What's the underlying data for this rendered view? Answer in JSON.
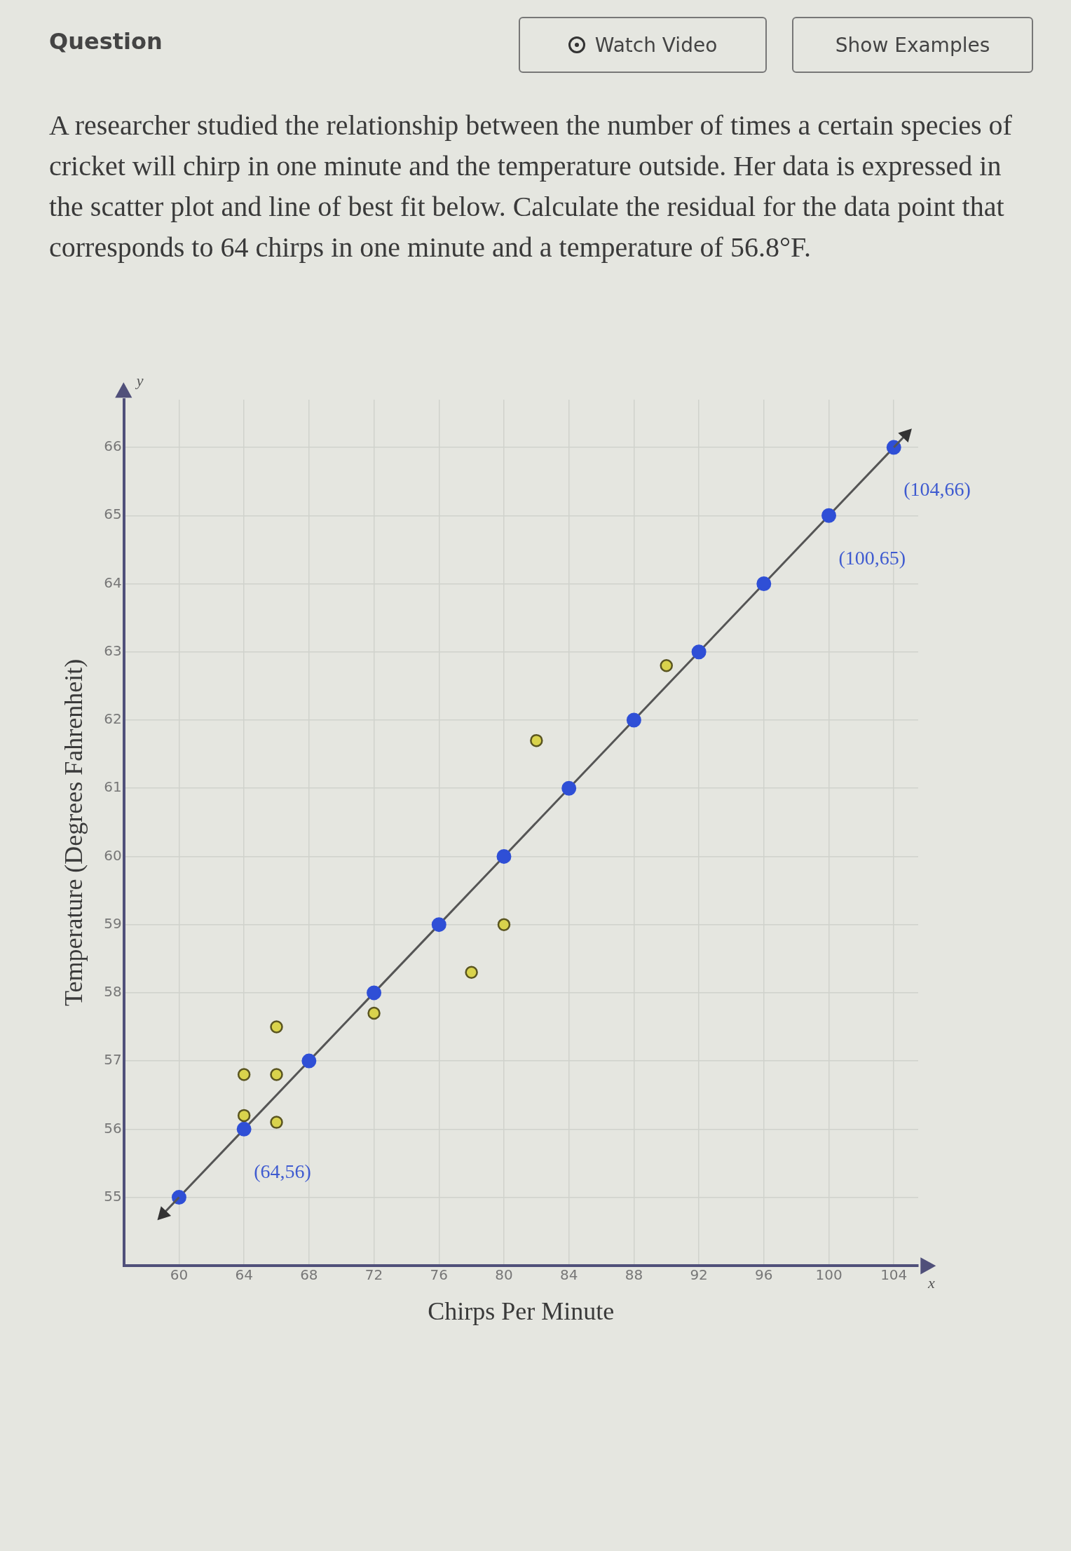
{
  "chart_data": {
    "type": "scatter",
    "xlabel": "Chirps Per Minute",
    "ylabel": "Temperature (Degrees Fahrenheit)",
    "xlim": [
      56.6,
      105.5
    ],
    "ylim": [
      54,
      66.7
    ],
    "xticks": [
      60,
      64,
      68,
      72,
      76,
      80,
      84,
      88,
      92,
      96,
      100,
      104
    ],
    "yticks": [
      55,
      56,
      57,
      58,
      59,
      60,
      61,
      62,
      63,
      64,
      65,
      66
    ],
    "grid": true,
    "legend": false,
    "marker": "circle",
    "series": [
      {
        "type": "scatter",
        "color": "#d9d34c",
        "x": [
          64,
          64,
          66,
          66,
          66,
          72,
          78,
          80,
          82,
          90
        ],
        "values": [
          56.2,
          56.8,
          56.1,
          56.8,
          57.5,
          57.7,
          58.3,
          59,
          61.7,
          62.8
        ]
      },
      {
        "type": "line",
        "color": "#2f4fd6",
        "x": [
          60,
          64,
          68,
          72,
          76,
          80,
          84,
          88,
          92,
          96,
          100,
          104
        ],
        "values": [
          55,
          56,
          57,
          58,
          59,
          60,
          61,
          62,
          63,
          64,
          65,
          66
        ]
      }
    ],
    "annotations": [
      "Question",
      "A researcher studied the relationship between the number of times a certain species of cricket will chirp in one minute and the temperature outside. Her data is expressed in the scatter plot and line of best fit below. Calculate the residual for the data point that corresponds to 64 chirps in one minute and a temperature of 56.8°F.",
      "Watch Video",
      "Show Examples",
      "y",
      "x",
      {
        "text": "(64,56)",
        "x": 64,
        "y": 56
      },
      {
        "text": "(100,65)",
        "x": 100,
        "y": 65
      },
      {
        "text": "(104,66)",
        "x": 104,
        "y": 66
      }
    ]
  }
}
